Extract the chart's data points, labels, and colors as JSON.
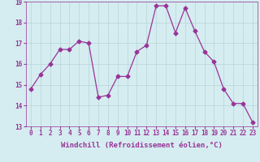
{
  "x": [
    0,
    1,
    2,
    3,
    4,
    5,
    6,
    7,
    8,
    9,
    10,
    11,
    12,
    13,
    14,
    15,
    16,
    17,
    18,
    19,
    20,
    21,
    22,
    23
  ],
  "y": [
    14.8,
    15.5,
    16.0,
    16.7,
    16.7,
    17.1,
    17.0,
    14.4,
    14.5,
    15.4,
    15.4,
    16.6,
    16.9,
    18.8,
    18.8,
    17.5,
    18.7,
    17.6,
    16.6,
    16.1,
    14.8,
    14.1,
    14.1,
    13.2
  ],
  "line_color": "#993399",
  "marker": "D",
  "marker_size": 2.5,
  "bg_color": "#d5edf0",
  "grid_color": "#b8d4d8",
  "xlabel": "Windchill (Refroidissement éolien,°C)",
  "ylabel": "",
  "ylim": [
    13,
    19
  ],
  "xlim_min": -0.5,
  "xlim_max": 23.5,
  "yticks": [
    13,
    14,
    15,
    16,
    17,
    18,
    19
  ],
  "xticks": [
    0,
    1,
    2,
    3,
    4,
    5,
    6,
    7,
    8,
    9,
    10,
    11,
    12,
    13,
    14,
    15,
    16,
    17,
    18,
    19,
    20,
    21,
    22,
    23
  ],
  "tick_label_fontsize": 5.5,
  "xlabel_fontsize": 6.5,
  "tick_color": "#993399",
  "label_color": "#993399"
}
